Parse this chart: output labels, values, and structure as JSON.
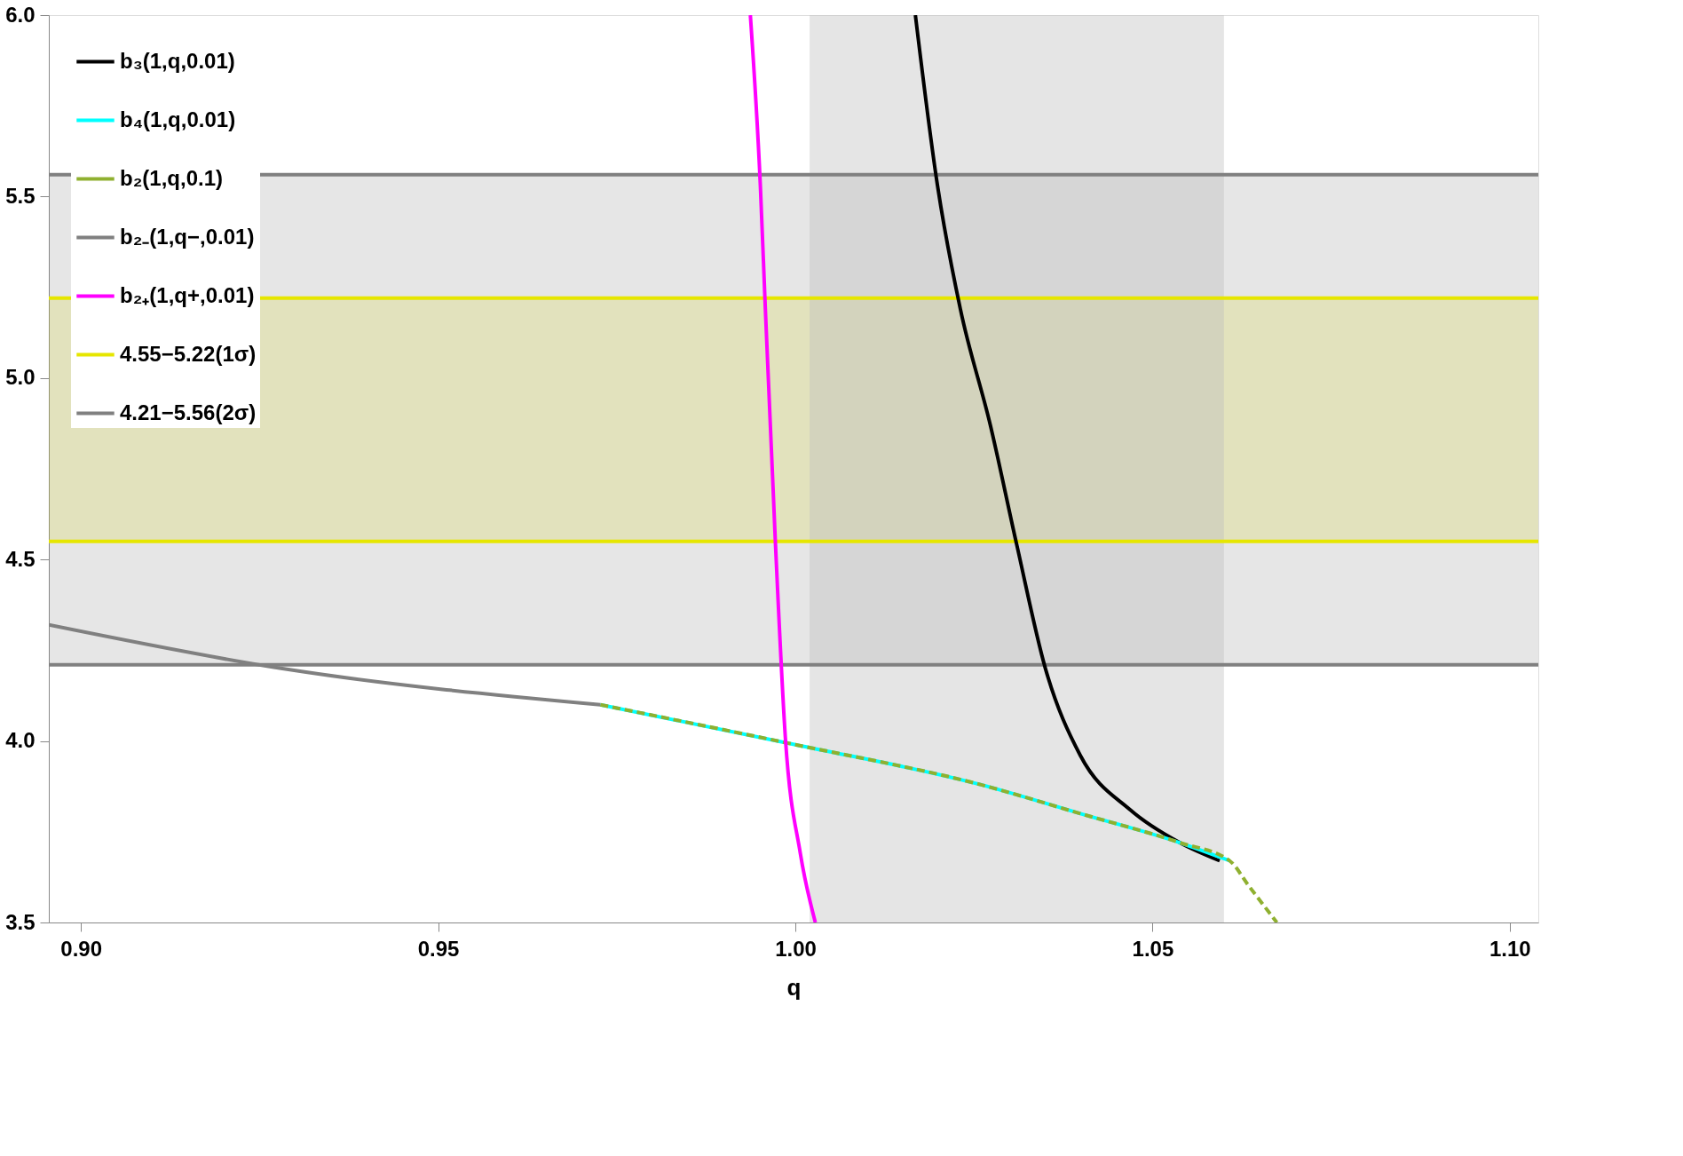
{
  "chart_data": {
    "type": "line",
    "xlabel": "q",
    "xlim": [
      0.8955,
      1.104
    ],
    "ylim": [
      3.5,
      6.0
    ],
    "xticks": [
      {
        "value": 0.9,
        "label": "0.90"
      },
      0.95,
      {
        "value": 1.0,
        "label": "1.00"
      },
      1.05,
      {
        "value": 1.1,
        "label": "1.10"
      }
    ],
    "yticks": [
      3.5,
      {
        "value": 4.0,
        "label": "4.0"
      },
      4.5,
      {
        "value": 5.0,
        "label": "5.0"
      },
      5.5,
      {
        "value": 6.0,
        "label": "6.0"
      }
    ],
    "grid": false,
    "legend": "top left",
    "line_style": "solid",
    "series": [
      {
        "name": "b₃(1,q,0.01)",
        "color": "#000000",
        "x": [
          1.0168,
          1.0199,
          1.0231,
          1.0273,
          1.031,
          1.035,
          1.0399,
          1.0469,
          1.0538,
          1.0594
        ],
        "values": [
          6.0,
          5.53,
          5.19,
          4.87,
          4.54,
          4.2,
          3.96,
          3.81,
          3.72,
          3.67
        ]
      },
      {
        "name": "b₄(1,q,0.01)",
        "color": "#00ffff",
        "x": [
          0.9727,
          1.0,
          1.0259,
          1.0399,
          1.0538,
          1.0608
        ],
        "values": [
          4.1,
          3.99,
          3.88,
          3.8,
          3.72,
          3.67
        ]
      },
      {
        "name": "b₂(1,q,0.1)",
        "color": "#8fb030",
        "line_style": "dashed",
        "x": [
          0.9727,
          1.0,
          1.0259,
          1.0399,
          1.0538,
          1.0608,
          1.0635,
          1.0674
        ],
        "values": [
          4.1,
          3.99,
          3.88,
          3.8,
          3.72,
          3.67,
          3.6,
          3.5
        ]
      },
      {
        "name": "b₂₋(1,q−,0.01)",
        "color": "#808080",
        "x": [
          0.8955,
          0.928,
          0.9727
        ],
        "values": [
          4.32,
          4.2,
          4.1
        ]
      },
      {
        "name": "b₂₊(1,q+,0.01)",
        "color": "#ff00ff",
        "x": [
          0.9937,
          0.9951,
          0.9958,
          0.9972,
          0.9986,
          1.0007,
          1.0028
        ],
        "values": [
          6.0,
          5.53,
          5.19,
          4.55,
          4.01,
          3.69,
          3.5
        ]
      }
    ],
    "ref_lines": [
      {
        "axis": "y",
        "value": 4.55,
        "color": "#e6e600"
      },
      {
        "axis": "y",
        "value": 5.22,
        "color": "#e6e600"
      },
      {
        "axis": "y",
        "value": 4.21,
        "color": "#808080"
      },
      {
        "axis": "y",
        "value": 5.56,
        "color": "#808080"
      }
    ],
    "bands": [
      {
        "axis": "y",
        "from": 4.55,
        "to": 5.22,
        "label": "4.55−5.22(1σ)",
        "color": "#e6e600"
      },
      {
        "axis": "y",
        "from": 4.21,
        "to": 5.56,
        "label": "4.21−5.56(2σ)",
        "color": "#808080"
      },
      {
        "axis": "x",
        "from": 1.002,
        "to": 1.06,
        "color": "#bfbfbf"
      }
    ]
  }
}
